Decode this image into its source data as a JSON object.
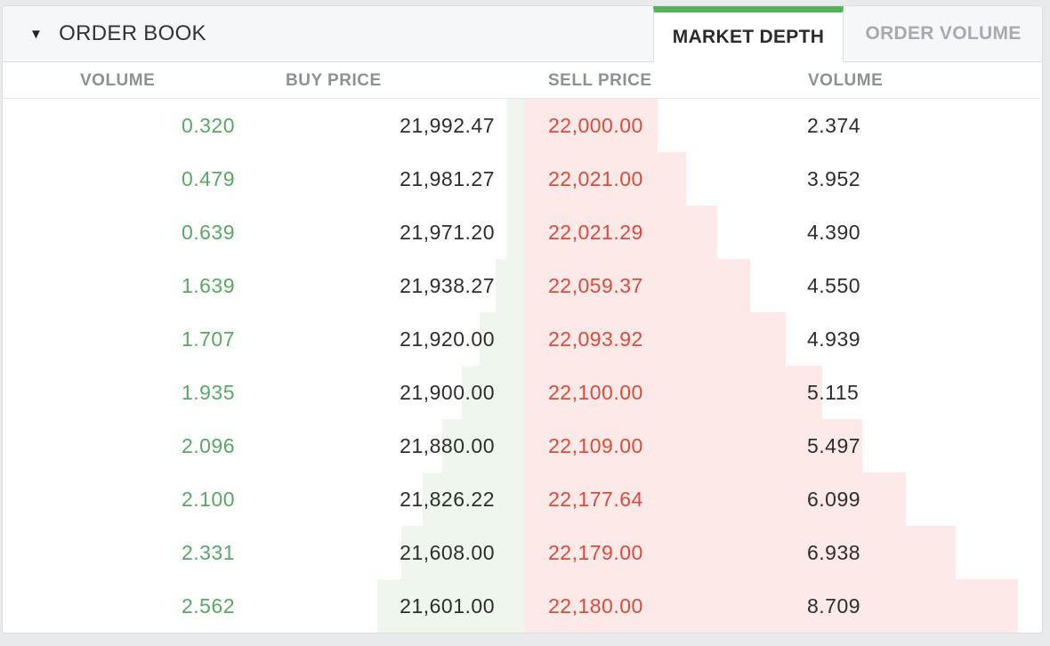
{
  "header": {
    "caret": "▼",
    "title": "ORDER BOOK",
    "tabs": [
      {
        "label": "MARKET DEPTH",
        "active": true
      },
      {
        "label": "ORDER VOLUME",
        "active": false
      }
    ]
  },
  "columns": {
    "buy_volume": "VOLUME",
    "buy_price": "BUY PRICE",
    "sell_price": "SELL PRICE",
    "sell_volume": "VOLUME"
  },
  "colors": {
    "accent": "#53b35a",
    "buy_text": "#5aa864",
    "sell_text": "#de4b3c",
    "buy_bar": "#eef6ee",
    "sell_bar": "#fde9e7"
  },
  "rows": [
    {
      "buy_volume": "0.320",
      "buy_price": "21,992.47",
      "sell_price": "22,000.00",
      "sell_volume": "2.374",
      "buy_depth": 0.32,
      "sell_depth": 2.374
    },
    {
      "buy_volume": "0.479",
      "buy_price": "21,981.27",
      "sell_price": "22,021.00",
      "sell_volume": "3.952",
      "buy_depth": 0.799,
      "sell_depth": 6.326
    },
    {
      "buy_volume": "0.639",
      "buy_price": "21,971.20",
      "sell_price": "22,021.29",
      "sell_volume": "4.390",
      "buy_depth": 1.438,
      "sell_depth": 10.716
    },
    {
      "buy_volume": "1.639",
      "buy_price": "21,938.27",
      "sell_price": "22,059.37",
      "sell_volume": "4.550",
      "buy_depth": 3.077,
      "sell_depth": 15.266
    },
    {
      "buy_volume": "1.707",
      "buy_price": "21,920.00",
      "sell_price": "22,093.92",
      "sell_volume": "4.939",
      "buy_depth": 4.784,
      "sell_depth": 20.205
    },
    {
      "buy_volume": "1.935",
      "buy_price": "21,900.00",
      "sell_price": "22,100.00",
      "sell_volume": "5.115",
      "buy_depth": 6.719,
      "sell_depth": 25.32
    },
    {
      "buy_volume": "2.096",
      "buy_price": "21,880.00",
      "sell_price": "22,109.00",
      "sell_volume": "5.497",
      "buy_depth": 8.815,
      "sell_depth": 30.817
    },
    {
      "buy_volume": "2.100",
      "buy_price": "21,826.22",
      "sell_price": "22,177.64",
      "sell_volume": "6.099",
      "buy_depth": 10.915,
      "sell_depth": 36.916
    },
    {
      "buy_volume": "2.331",
      "buy_price": "21,608.00",
      "sell_price": "22,179.00",
      "sell_volume": "6.938",
      "buy_depth": 13.246,
      "sell_depth": 43.854
    },
    {
      "buy_volume": "2.562",
      "buy_price": "21,601.00",
      "sell_price": "22,180.00",
      "sell_volume": "8.709",
      "buy_depth": 15.808,
      "sell_depth": 52.563
    }
  ]
}
